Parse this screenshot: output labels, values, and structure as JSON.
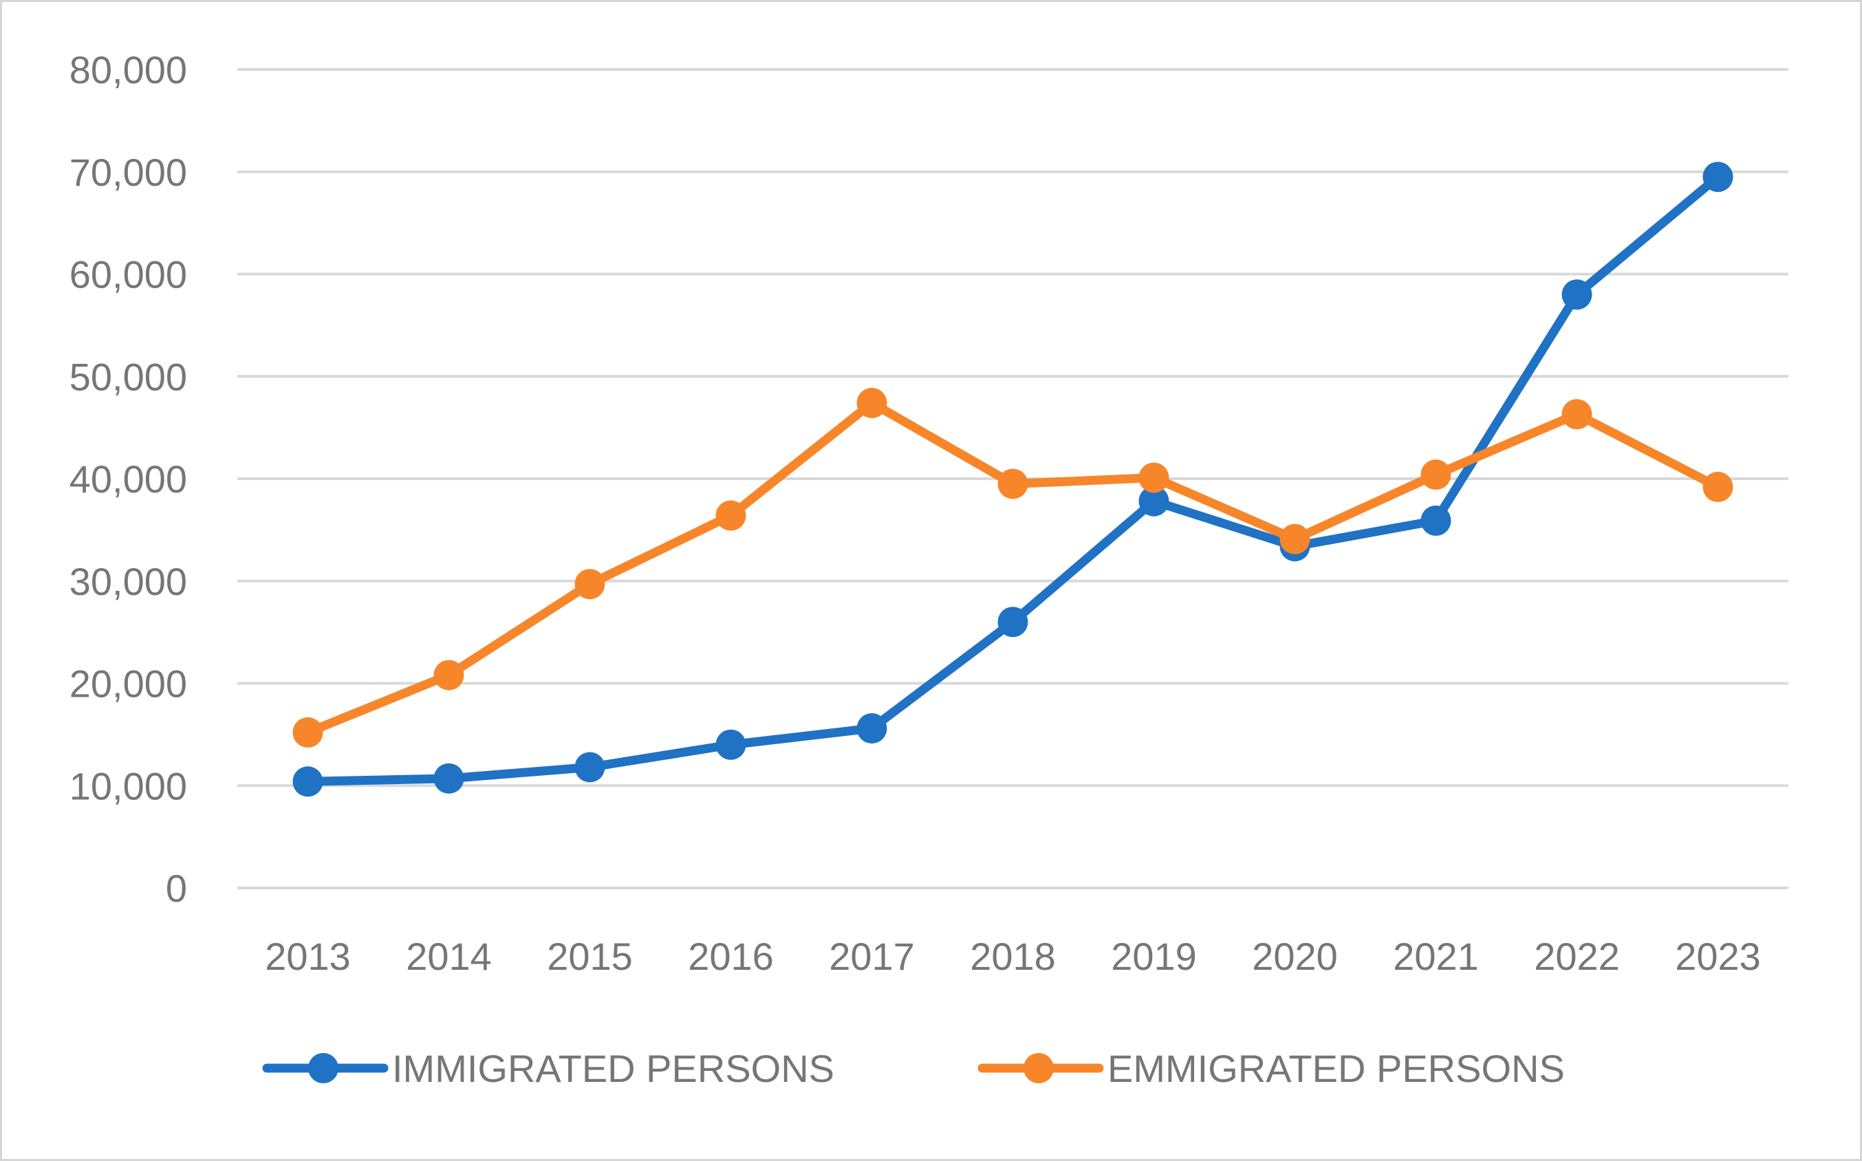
{
  "chart_data": {
    "type": "line",
    "title": "",
    "xlabel": "",
    "ylabel": "",
    "categories": [
      "2013",
      "2014",
      "2015",
      "2016",
      "2017",
      "2018",
      "2019",
      "2020",
      "2021",
      "2022",
      "2023"
    ],
    "ylim": [
      0,
      80000
    ],
    "ytick_values": [
      0,
      10000,
      20000,
      30000,
      40000,
      50000,
      60000,
      70000,
      80000
    ],
    "ytick_labels": [
      "0",
      "10,000",
      "20,000",
      "30,000",
      "40,000",
      "50,000",
      "60,000",
      "70,000",
      "80,000"
    ],
    "grid": true,
    "legend_position": "bottom",
    "series": [
      {
        "name": "IMMIGRATED PERSONS",
        "color": "#1F72C4",
        "values": [
          10400,
          10700,
          11800,
          14000,
          15600,
          26000,
          37800,
          33400,
          35900,
          58000,
          69500
        ]
      },
      {
        "name": "EMMIGRATED PERSONS",
        "color": "#F7862A",
        "values": [
          15200,
          20800,
          29700,
          36400,
          47400,
          39500,
          40100,
          34100,
          40400,
          46300,
          39200
        ]
      }
    ]
  }
}
